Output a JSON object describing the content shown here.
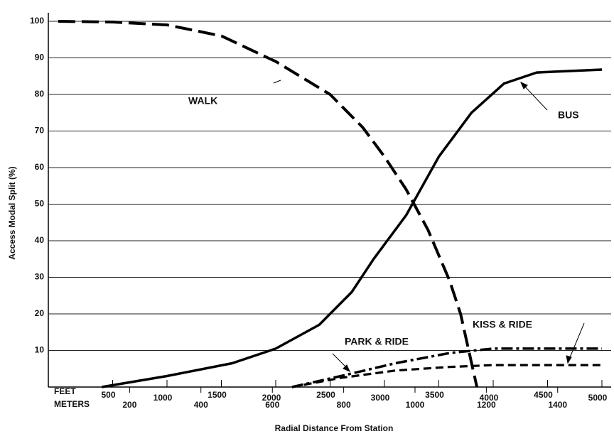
{
  "chart_data": {
    "type": "line",
    "ylabel": "Access Modal Split (%)",
    "xlabel": "Radial Distance From Station",
    "xlim": [
      0,
      5000
    ],
    "ylim": [
      0,
      100
    ],
    "yticks": [
      10,
      20,
      30,
      40,
      50,
      60,
      70,
      80,
      90,
      100
    ],
    "grid": true,
    "x_unit_label": "FEET",
    "xticks": [
      500,
      1000,
      1500,
      2000,
      2500,
      3000,
      3500,
      4000,
      4500,
      5000
    ],
    "x2_unit_label": "METERS",
    "x2ticks": [
      {
        "value": 656,
        "label": "200"
      },
      {
        "value": 1312,
        "label": "400"
      },
      {
        "value": 1969,
        "label": "600"
      },
      {
        "value": 2625,
        "label": "800"
      },
      {
        "value": 3281,
        "label": "1000"
      },
      {
        "value": 3937,
        "label": "1200"
      },
      {
        "value": 4593,
        "label": "1400"
      }
    ],
    "series": [
      {
        "name": "WALK",
        "color": "#000000",
        "line_style": "dashed",
        "x": [
          0,
          500,
          1000,
          1500,
          2000,
          2500,
          2800,
          3000,
          3200,
          3400,
          3600,
          3700,
          3850
        ],
        "values": [
          100,
          99.8,
          99,
          96,
          89,
          80,
          71,
          63,
          54,
          43,
          29,
          20,
          0
        ]
      },
      {
        "name": "BUS",
        "color": "#000000",
        "line_style": "solid",
        "x": [
          400,
          1000,
          1600,
          2000,
          2400,
          2700,
          2900,
          3200,
          3500,
          3800,
          4100,
          4400,
          5000
        ],
        "values": [
          0,
          3,
          6.5,
          10.5,
          17,
          26,
          35,
          47,
          63,
          75,
          83,
          86,
          86.8
        ]
      },
      {
        "name": "PARK & RIDE",
        "color": "#000000",
        "line_style": "dashdot",
        "x": [
          2150,
          2600,
          3100,
          3600,
          4000,
          5000
        ],
        "values": [
          0,
          3,
          6.5,
          9.3,
          10.5,
          10.5
        ]
      },
      {
        "name": "KISS & RIDE",
        "color": "#000000",
        "line_style": "short-dashed",
        "x": [
          2150,
          2600,
          3100,
          3600,
          4000,
          5000
        ],
        "values": [
          0,
          2.5,
          4.5,
          5.5,
          6,
          6
        ]
      }
    ]
  }
}
